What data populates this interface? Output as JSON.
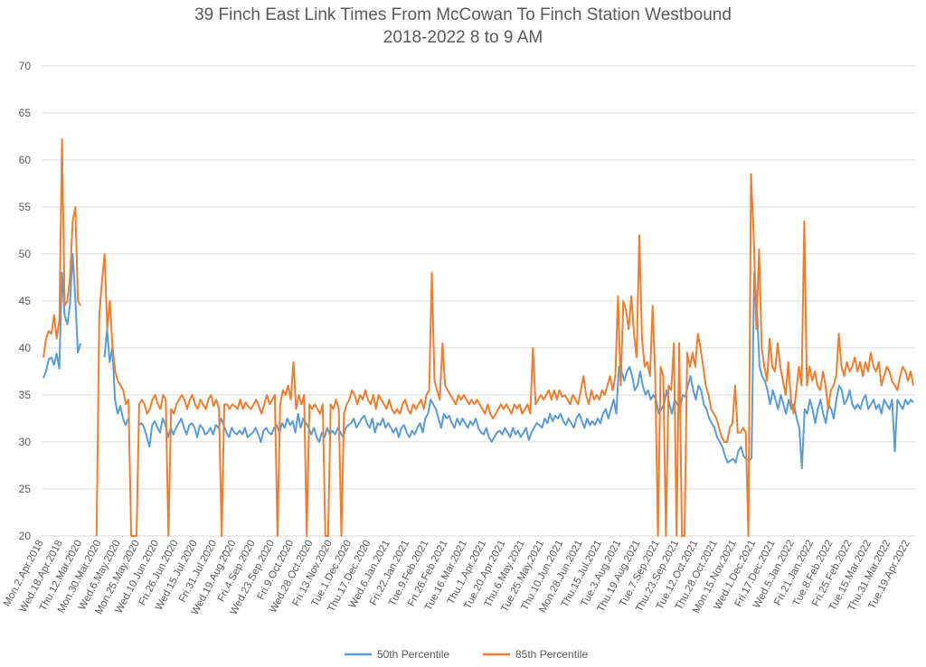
{
  "chart_data": {
    "type": "line",
    "title": "39 Finch East Link Times From McCowan To Finch Station Westbound",
    "subtitle": "2018-2022 8 to 9 AM",
    "ylim": [
      20,
      70
    ],
    "y_ticks": [
      20,
      25,
      30,
      35,
      40,
      45,
      50,
      55,
      60,
      65,
      70
    ],
    "grid": "horizontal",
    "legend_position": "bottom",
    "x_ticks": [
      "Mon.2.Apr.2018",
      "Wed.18.Apr.2018",
      "Thu.12.Mar.2020",
      "Mon.30.Mar.2020",
      "Wed.6.May.2020",
      "Mon.25.May.2020",
      "Wed.10.Jun.2020",
      "Fri.26.Jun.2020",
      "Wed.15.Jul.2020",
      "Fri.31.Jul.2020",
      "Wed.19.Aug.2020",
      "Fri.4.Sep.2020",
      "Wed.23.Sep.2020",
      "Fri.9.Oct.2020",
      "Wed.28.Oct.2020",
      "Fri.13.Nov.2020",
      "Tue.1.Dec.2020",
      "Thu.17.Dec.2020",
      "Wed.6.Jan.2021",
      "Fri.22.Jan.2021",
      "Tue.9.Feb.2021",
      "Fri.26.Feb.2021",
      "Tue.16.Mar.2021",
      "Thu.1.Apr.2021",
      "Tue.20.Apr.2021",
      "Thu.6.May.2021",
      "Tue.25.May.2021",
      "Thu.10.Jun.2021",
      "Mon.28.Jun.2021",
      "Thu.15.Jul.2021",
      "Tue.3.Aug.2021",
      "Thu.19.Aug.2021",
      "Tue.7.Sep.2021",
      "Thu.23.Sep.2021",
      "Tue.12.Oct.2021",
      "Thu.28.Oct.2021",
      "Mon.15.Nov.2021",
      "Wed.1.Dec.2021",
      "Fri.17.Dec.2021",
      "Wed.5.Jan.2022",
      "Fri.21.Jan.2022",
      "Tue.8.Feb.2022",
      "Fri.25.Feb.2022",
      "Tue.15.Mar.2022",
      "Thu.31.Mar.2022",
      "Tue.19.Apr.2022"
    ],
    "series": [
      {
        "name": "50th Percentile",
        "color": "#5b9bd5",
        "values": [
          36.8,
          37.5,
          38.8,
          39.0,
          38.2,
          39.4,
          37.8,
          48.0,
          43.5,
          42.5,
          44.5,
          50.0,
          45.5,
          39.5,
          40.5,
          null,
          40.5,
          null,
          null,
          null,
          null,
          null,
          null,
          39.0,
          42.0,
          38.5,
          40.0,
          34.5,
          33.0,
          33.8,
          32.5,
          31.8,
          32.5,
          null,
          null,
          null,
          31.8,
          32.0,
          31.5,
          30.5,
          29.5,
          31.8,
          32.2,
          31.5,
          31.0,
          32.5,
          31.8,
          30.5,
          31.5,
          30.8,
          31.5,
          32.0,
          32.5,
          31.5,
          30.8,
          31.8,
          32.0,
          31.5,
          30.5,
          31.8,
          31.5,
          30.8,
          31.0,
          31.5,
          30.8,
          31.8,
          31.5,
          32.5,
          31.8,
          31.0,
          30.5,
          31.5,
          31.0,
          30.8,
          31.2,
          30.8,
          31.5,
          30.5,
          30.8,
          31.0,
          31.5,
          30.8,
          30.0,
          31.2,
          31.5,
          31.0,
          30.8,
          31.5,
          31.8,
          31.0,
          32.0,
          31.5,
          32.5,
          31.8,
          32.2,
          31.0,
          33.0,
          31.5,
          32.5,
          32.0,
          31.5,
          30.8,
          31.5,
          30.5,
          30.0,
          31.0,
          30.5,
          31.5,
          30.8,
          31.2,
          30.8,
          31.5,
          31.0,
          30.5,
          31.5,
          31.8,
          32.0,
          32.5,
          31.5,
          32.0,
          32.5,
          32.8,
          32.0,
          31.5,
          32.5,
          31.0,
          32.0,
          31.8,
          32.5,
          31.5,
          32.0,
          31.5,
          31.0,
          31.5,
          30.5,
          31.5,
          31.8,
          31.0,
          30.5,
          31.2,
          30.8,
          31.5,
          32.0,
          31.0,
          32.5,
          33.0,
          34.5,
          34.0,
          33.5,
          32.5,
          31.5,
          33.0,
          32.5,
          32.8,
          32.0,
          31.5,
          32.5,
          31.8,
          32.5,
          32.0,
          31.5,
          32.2,
          31.8,
          32.5,
          31.5,
          31.0,
          30.8,
          31.5,
          30.5,
          30.0,
          30.5,
          31.0,
          31.2,
          30.8,
          31.5,
          31.0,
          30.5,
          31.5,
          30.8,
          31.2,
          30.5,
          31.0,
          31.5,
          30.2,
          31.0,
          31.5,
          32.0,
          31.8,
          31.5,
          32.5,
          32.0,
          33.0,
          32.2,
          32.8,
          32.5,
          33.0,
          32.2,
          31.8,
          32.5,
          32.0,
          31.5,
          32.5,
          33.0,
          32.2,
          31.5,
          32.5,
          31.8,
          32.2,
          31.8,
          32.5,
          32.0,
          33.0,
          33.5,
          32.5,
          33.5,
          34.5,
          33.0,
          38.0,
          37.5,
          36.5,
          37.5,
          38.0,
          37.0,
          35.5,
          36.0,
          37.5,
          36.0,
          35.0,
          35.5,
          34.5,
          35.0,
          34.5,
          33.0,
          33.5,
          34.0,
          35.5,
          34.0,
          33.0,
          34.5,
          34.0,
          33.5,
          35.0,
          34.8,
          36.0,
          37.0,
          35.5,
          34.5,
          36.0,
          35.5,
          34.0,
          33.5,
          32.5,
          32.0,
          31.5,
          30.5,
          30.0,
          29.5,
          28.5,
          27.8,
          28.0,
          28.2,
          27.8,
          29.0,
          29.5,
          28.5,
          28.2,
          28.0,
          28.3,
          48.0,
          44.5,
          38.0,
          37.0,
          36.5,
          35.5,
          34.0,
          35.5,
          34.5,
          33.5,
          35.0,
          34.0,
          33.0,
          34.5,
          33.5,
          34.0,
          32.5,
          31.5,
          27.2,
          33.5,
          33.0,
          34.5,
          33.5,
          32.0,
          33.5,
          34.5,
          33.0,
          32.0,
          34.0,
          33.5,
          32.5,
          34.5,
          36.0,
          35.5,
          34.0,
          34.5,
          35.5,
          34.0,
          33.5,
          34.0,
          33.5,
          34.5,
          35.0,
          33.5,
          34.0,
          34.5,
          33.5,
          34.0,
          33.0,
          34.5,
          34.0,
          33.5,
          34.5,
          29.0,
          34.5,
          34.0,
          33.5,
          34.5,
          34.0,
          34.5,
          34.2
        ]
      },
      {
        "name": "85th Percentile",
        "color": "#ed7d31",
        "values": [
          39.0,
          41.0,
          41.8,
          41.5,
          43.5,
          41.0,
          43.0,
          62.2,
          44.5,
          45.0,
          47.5,
          53.5,
          55.0,
          45.0,
          44.5,
          null,
          44.5,
          null,
          null,
          null,
          20,
          43.5,
          47.0,
          50.0,
          42.0,
          45.0,
          40.0,
          37.5,
          36.5,
          36.0,
          35.5,
          34.0,
          34.5,
          20,
          20,
          20,
          34.0,
          34.5,
          34.0,
          33.0,
          33.5,
          34.5,
          35.0,
          34.0,
          33.5,
          35.0,
          34.5,
          20,
          33.5,
          33.0,
          34.0,
          34.5,
          35.0,
          34.5,
          33.5,
          34.5,
          35.0,
          34.0,
          33.5,
          34.5,
          34.0,
          33.5,
          34.5,
          35.0,
          33.8,
          34.5,
          33.5,
          20,
          34.0,
          34.0,
          33.5,
          34.0,
          33.8,
          33.5,
          34.5,
          33.5,
          34.2,
          33.8,
          33.5,
          34.0,
          34.5,
          33.8,
          33.0,
          34.0,
          35.0,
          34.0,
          34.5,
          35.0,
          20,
          34.0,
          35.5,
          35.0,
          36.0,
          34.5,
          38.5,
          33.5,
          35.0,
          34.0,
          35.0,
          20,
          34.0,
          33.5,
          34.0,
          33.5,
          33.0,
          34.0,
          20,
          20,
          34.0,
          33.5,
          34.5,
          33.5,
          20,
          33.0,
          34.0,
          34.5,
          35.5,
          35.0,
          34.0,
          35.0,
          34.5,
          35.5,
          34.5,
          34.0,
          35.0,
          33.5,
          35.0,
          34.5,
          34.0,
          33.5,
          34.5,
          33.5,
          33.0,
          33.5,
          33.0,
          34.0,
          34.5,
          33.5,
          33.0,
          34.0,
          33.5,
          34.0,
          34.5,
          33.5,
          35.0,
          35.5,
          48.0,
          36.5,
          35.5,
          34.5,
          40.5,
          36.0,
          35.5,
          35.0,
          34.5,
          34.0,
          35.0,
          34.5,
          35.0,
          34.5,
          34.0,
          34.5,
          34.0,
          34.5,
          34.0,
          33.5,
          33.0,
          34.0,
          33.0,
          32.5,
          33.0,
          33.5,
          34.0,
          33.5,
          34.0,
          33.5,
          33.0,
          34.0,
          33.5,
          34.0,
          33.0,
          33.5,
          34.0,
          33.0,
          40.0,
          34.0,
          34.5,
          35.0,
          34.5,
          35.0,
          35.5,
          34.5,
          35.5,
          34.5,
          35.5,
          34.8,
          35.0,
          34.5,
          34.0,
          35.0,
          34.5,
          34.0,
          35.5,
          37.0,
          35.0,
          34.0,
          35.5,
          34.5,
          35.0,
          34.5,
          35.5,
          35.0,
          36.0,
          37.0,
          35.5,
          37.0,
          45.5,
          36.0,
          45.0,
          44.0,
          42.0,
          45.5,
          41.5,
          39.0,
          52.0,
          41.0,
          38.0,
          38.5,
          37.0,
          44.5,
          37.0,
          20,
          38.0,
          37.0,
          20,
          36.0,
          35.5,
          40.5,
          20,
          40.5,
          20,
          20,
          39.5,
          38.0,
          39.5,
          38.0,
          41.5,
          40.0,
          38.0,
          36.0,
          35.0,
          33.5,
          33.0,
          32.5,
          31.5,
          30.5,
          30.0,
          30.0,
          31.5,
          32.0,
          36.0,
          31.0,
          31.0,
          31.5,
          31.0,
          20,
          58.5,
          52.0,
          42.0,
          50.5,
          40.0,
          38.0,
          36.5,
          41.0,
          38.0,
          37.5,
          40.5,
          38.0,
          36.5,
          35.0,
          38.5,
          34.5,
          33.0,
          35.5,
          38.0,
          36.0,
          53.5,
          36.0,
          38.0,
          36.5,
          37.5,
          36.0,
          35.5,
          37.5,
          36.0,
          33.5,
          35.5,
          36.0,
          37.0,
          41.5,
          38.0,
          37.0,
          38.5,
          37.5,
          38.0,
          39.0,
          37.5,
          38.5,
          37.0,
          38.5,
          37.5,
          39.5,
          38.0,
          37.5,
          38.5,
          36.0,
          37.0,
          38.0,
          37.5,
          36.5,
          36.0,
          35.5,
          37.0,
          38.0,
          37.5,
          36.5,
          37.5,
          36.0
        ]
      }
    ]
  }
}
